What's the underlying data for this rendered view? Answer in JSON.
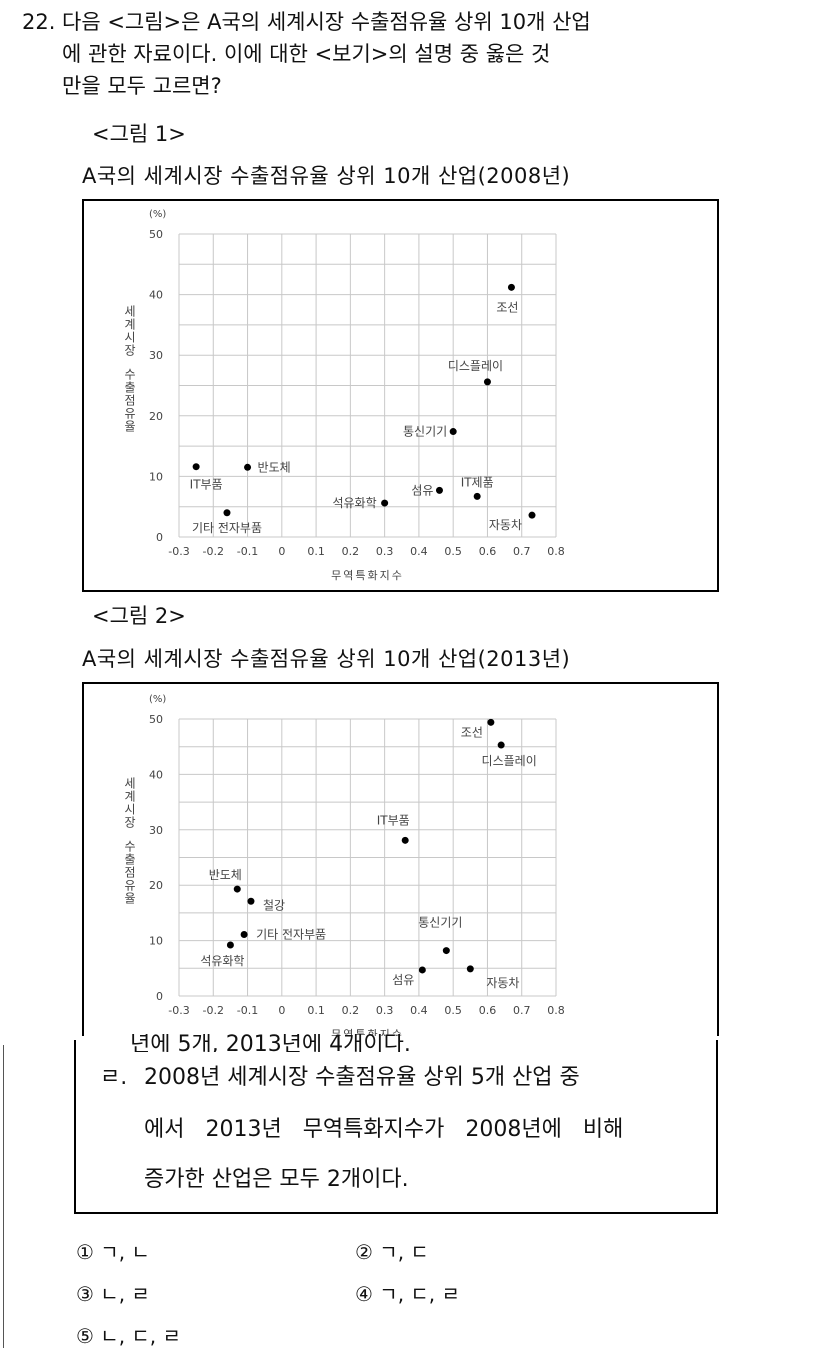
{
  "question": {
    "number": "22.",
    "lines": [
      "다음 <그림>은 A국의 세계시장 수출점유율 상위 10개 산업",
      "에 관한 자료이다. 이에 대한 <보기>의 설명 중 옳은 것",
      "만을 모두 고르면?"
    ]
  },
  "chart_data": [
    {
      "type": "scatter",
      "figure_label": "<그림 1>",
      "title": "A국의 세계시장 수출점유율 상위 10개 산업(2008년)",
      "xlabel": "무역특화지수",
      "ylabel": "세계시장 수출점유율",
      "yunit": "(%)",
      "xlim": [
        -0.3,
        0.8
      ],
      "ylim": [
        0,
        50
      ],
      "xticks": [
        "-0.3",
        "-0.2",
        "-0.1",
        "0",
        "0.1",
        "0.2",
        "0.3",
        "0.4",
        "0.5",
        "0.6",
        "0.7",
        "0.8"
      ],
      "yticks": [
        "0",
        "10",
        "20",
        "30",
        "40",
        "50"
      ],
      "grid": true,
      "points": [
        {
          "label": "IT부품",
          "x": -0.25,
          "y": 11.6
        },
        {
          "label": "반도체",
          "x": -0.1,
          "y": 11.5
        },
        {
          "label": "기타 전자부품",
          "x": -0.16,
          "y": 4.0
        },
        {
          "label": "석유화학",
          "x": 0.3,
          "y": 5.6
        },
        {
          "label": "섬유",
          "x": 0.46,
          "y": 7.7
        },
        {
          "label": "IT제품",
          "x": 0.57,
          "y": 6.7
        },
        {
          "label": "자동차",
          "x": 0.73,
          "y": 3.6
        },
        {
          "label": "통신기기",
          "x": 0.5,
          "y": 17.4
        },
        {
          "label": "디스플레이",
          "x": 0.6,
          "y": 25.6
        },
        {
          "label": "조선",
          "x": 0.67,
          "y": 41.2
        }
      ]
    },
    {
      "type": "scatter",
      "figure_label": "<그림 2>",
      "title": "A국의 세계시장 수출점유율 상위 10개 산업(2013년)",
      "xlabel": "무역특화지수",
      "ylabel": "세계시장 수출점유율",
      "yunit": "(%)",
      "xlim": [
        -0.3,
        0.8
      ],
      "ylim": [
        0,
        50
      ],
      "xticks": [
        "-0.3",
        "-0.2",
        "-0.1",
        "0",
        "0.1",
        "0.2",
        "0.3",
        "0.4",
        "0.5",
        "0.6",
        "0.7",
        "0.8"
      ],
      "yticks": [
        "0",
        "10",
        "20",
        "30",
        "40",
        "50"
      ],
      "grid": true,
      "points": [
        {
          "label": "조선",
          "x": 0.61,
          "y": 49.4
        },
        {
          "label": "디스플레이",
          "x": 0.64,
          "y": 45.3
        },
        {
          "label": "IT부품",
          "x": 0.36,
          "y": 28.1
        },
        {
          "label": "반도체",
          "x": -0.13,
          "y": 19.3
        },
        {
          "label": "철강",
          "x": -0.09,
          "y": 17.1
        },
        {
          "label": "기타 전자부품",
          "x": -0.11,
          "y": 11.1
        },
        {
          "label": "석유화학",
          "x": -0.15,
          "y": 9.2
        },
        {
          "label": "통신기기",
          "x": 0.48,
          "y": 8.2
        },
        {
          "label": "섬유",
          "x": 0.41,
          "y": 4.7
        },
        {
          "label": "자동차",
          "x": 0.55,
          "y": 4.9
        }
      ]
    }
  ],
  "bogi": {
    "partial_line": "년에 5개, 2013년에 4개이다.",
    "items": [
      {
        "key": "ㄹ.",
        "lines": [
          "2008년 세계시장 수출점유율 상위 5개 산업 중",
          "에서 2013년 무역특화지수가 2008년에 비해",
          "증가한 산업은 모두 2개이다."
        ]
      }
    ]
  },
  "options": [
    {
      "num": "①",
      "text": "ㄱ, ㄴ"
    },
    {
      "num": "②",
      "text": "ㄱ, ㄷ"
    },
    {
      "num": "③",
      "text": "ㄴ, ㄹ"
    },
    {
      "num": "④",
      "text": "ㄱ, ㄷ, ㄹ"
    },
    {
      "num": "⑤",
      "text": "ㄴ, ㄷ, ㄹ"
    }
  ]
}
